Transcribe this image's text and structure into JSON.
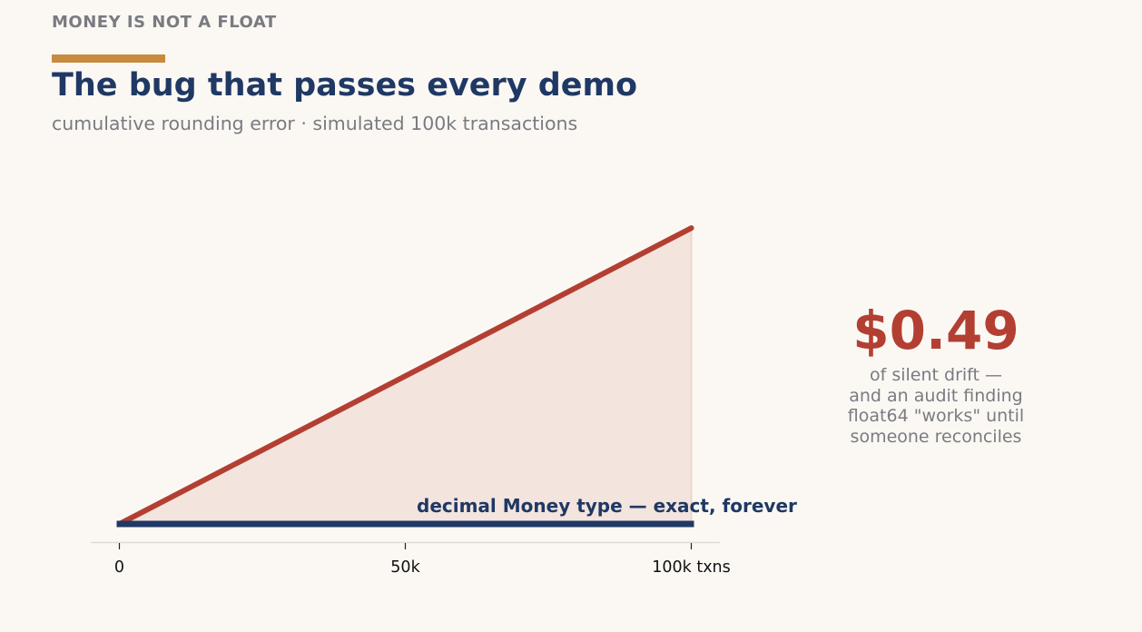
{
  "header": {
    "kicker": "MONEY IS NOT A FLOAT",
    "title": "The bug that passes every demo",
    "subtitle": "cumulative rounding error · simulated 100k transactions"
  },
  "colors": {
    "background": "#fbf8f4",
    "accent": "#c98a3f",
    "float_series": "#b33f32",
    "float_fill": "#f3e4de",
    "decimal_series": "#1f3864",
    "muted_text": "#7a7b80"
  },
  "chart_data": {
    "type": "line",
    "x_ticks": [
      {
        "value": 0,
        "label": "0"
      },
      {
        "value": 50000,
        "label": "50k"
      },
      {
        "value": 100000,
        "label": "100k txns"
      }
    ],
    "xlim": [
      -5000,
      105000
    ],
    "ylim": [
      -0.03,
      0.6
    ],
    "grid": false,
    "series": [
      {
        "key": "float64",
        "x": [
          0,
          100000
        ],
        "y": [
          0,
          0.49
        ],
        "filled": true
      },
      {
        "key": "decimal",
        "name": "decimal Money type — exact, forever",
        "x": [
          0,
          100000
        ],
        "y": [
          0,
          0
        ]
      }
    ]
  },
  "callout": {
    "value": "$0.49",
    "lines": [
      "of silent drift —",
      "and an audit finding",
      "float64 \"works\" until",
      "someone reconciles"
    ]
  }
}
